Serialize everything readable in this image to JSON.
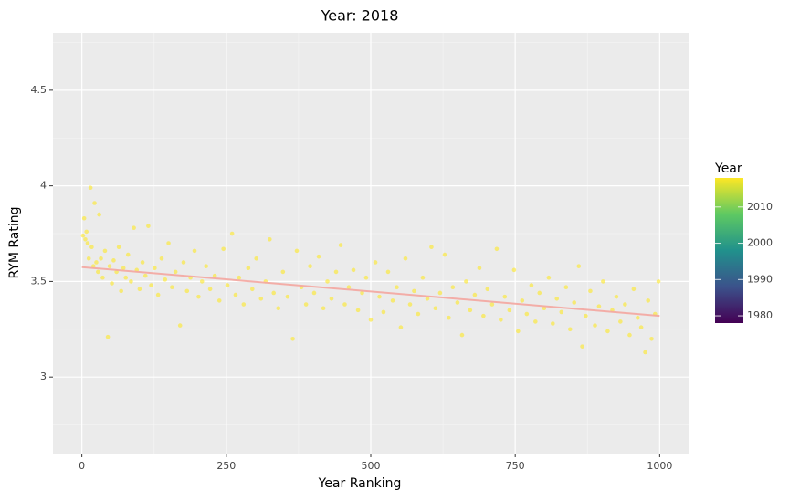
{
  "chart_data": {
    "type": "scatter",
    "title": "Year: 2018",
    "x_label": "Year Ranking",
    "y_label": "RYM Rating",
    "xlim": [
      -50,
      1050
    ],
    "ylim": [
      2.6,
      4.8
    ],
    "xticks": [
      0,
      250,
      500,
      750,
      1000
    ],
    "yticks": [
      3,
      3.5,
      4,
      4.5
    ],
    "grid": true,
    "minor_grid": true,
    "series": [
      {
        "color": "#fde725",
        "x": [
          2,
          4,
          6,
          8,
          10,
          12,
          15,
          17,
          20,
          22,
          25,
          28,
          30,
          33,
          36,
          40,
          45,
          48,
          52,
          55,
          60,
          64,
          68,
          72,
          76,
          80,
          85,
          90,
          95,
          100,
          105,
          110,
          115,
          120,
          126,
          132,
          138,
          144,
          150,
          156,
          162,
          170,
          176,
          182,
          188,
          195,
          202,
          208,
          215,
          222,
          230,
          238,
          245,
          252,
          260,
          266,
          272,
          280,
          288,
          295,
          302,
          310,
          318,
          325,
          332,
          340,
          348,
          356,
          365,
          372,
          380,
          388,
          395,
          402,
          410,
          418,
          425,
          432,
          440,
          448,
          455,
          462,
          470,
          478,
          485,
          492,
          500,
          508,
          515,
          522,
          530,
          538,
          545,
          552,
          560,
          568,
          575,
          582,
          590,
          598,
          605,
          612,
          620,
          628,
          635,
          642,
          650,
          658,
          665,
          672,
          680,
          688,
          695,
          702,
          710,
          718,
          725,
          732,
          740,
          748,
          755,
          762,
          770,
          778,
          785,
          792,
          800,
          808,
          815,
          822,
          830,
          838,
          845,
          852,
          860,
          866,
          872,
          880,
          888,
          895,
          902,
          910,
          918,
          925,
          932,
          940,
          948,
          955,
          962,
          968,
          975,
          980,
          986,
          992,
          998
        ],
        "values": [
          3.74,
          3.83,
          3.72,
          3.76,
          3.7,
          3.62,
          3.99,
          3.68,
          3.58,
          3.91,
          3.6,
          3.55,
          3.85,
          3.62,
          3.52,
          3.66,
          3.21,
          3.58,
          3.49,
          3.61,
          3.55,
          3.68,
          3.45,
          3.57,
          3.52,
          3.64,
          3.5,
          3.78,
          3.56,
          3.46,
          3.6,
          3.53,
          3.79,
          3.48,
          3.57,
          3.43,
          3.62,
          3.51,
          3.7,
          3.47,
          3.55,
          3.27,
          3.6,
          3.45,
          3.52,
          3.66,
          3.42,
          3.5,
          3.58,
          3.46,
          3.53,
          3.4,
          3.67,
          3.48,
          3.75,
          3.43,
          3.52,
          3.38,
          3.57,
          3.46,
          3.62,
          3.41,
          3.5,
          3.72,
          3.44,
          3.36,
          3.55,
          3.42,
          3.2,
          3.66,
          3.47,
          3.38,
          3.58,
          3.44,
          3.63,
          3.36,
          3.5,
          3.41,
          3.55,
          3.69,
          3.38,
          3.47,
          3.56,
          3.35,
          3.44,
          3.52,
          3.3,
          3.6,
          3.42,
          3.34,
          3.55,
          3.4,
          3.47,
          3.26,
          3.62,
          3.38,
          3.45,
          3.33,
          3.52,
          3.41,
          3.68,
          3.36,
          3.44,
          3.64,
          3.31,
          3.47,
          3.39,
          3.22,
          3.5,
          3.35,
          3.43,
          3.57,
          3.32,
          3.46,
          3.38,
          3.67,
          3.3,
          3.42,
          3.35,
          3.56,
          3.24,
          3.4,
          3.33,
          3.48,
          3.29,
          3.44,
          3.36,
          3.52,
          3.28,
          3.41,
          3.34,
          3.47,
          3.25,
          3.39,
          3.58,
          3.16,
          3.32,
          3.45,
          3.27,
          3.37,
          3.5,
          3.24,
          3.35,
          3.42,
          3.29,
          3.38,
          3.22,
          3.46,
          3.31,
          3.26,
          3.13,
          3.4,
          3.2,
          3.33,
          3.5
        ]
      }
    ],
    "trend": {
      "x": [
        0,
        1000
      ],
      "values": [
        3.575,
        3.32
      ],
      "color": "#f4a6a0"
    },
    "legend": {
      "title": "Year",
      "clim": [
        1978,
        2018
      ],
      "ticks": [
        1980,
        1990,
        2000,
        2010
      ]
    }
  }
}
